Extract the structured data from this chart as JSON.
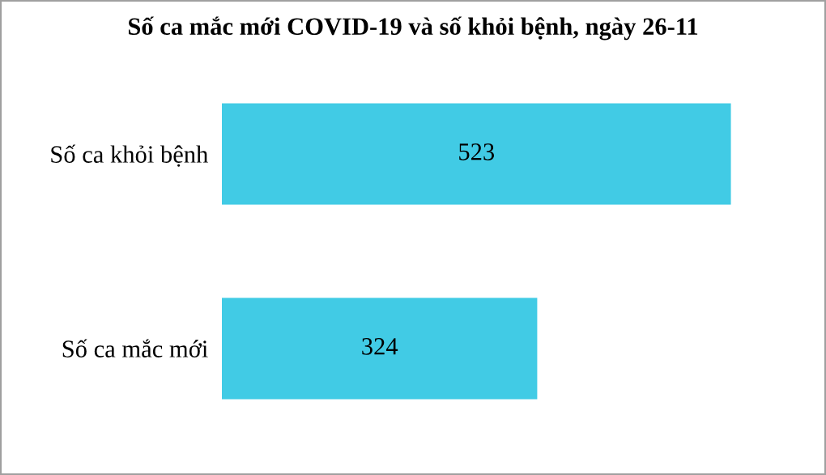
{
  "chart_data": {
    "type": "bar",
    "orientation": "horizontal",
    "title": "Số ca mắc mới COVID-19 và số khỏi bệnh, ngày 26-11",
    "categories": [
      "Số ca khỏi bệnh",
      "Số ca mắc mới"
    ],
    "values": [
      523,
      324
    ],
    "color": "#41cbe5",
    "data_labels": true,
    "grid": false,
    "legend": false
  }
}
